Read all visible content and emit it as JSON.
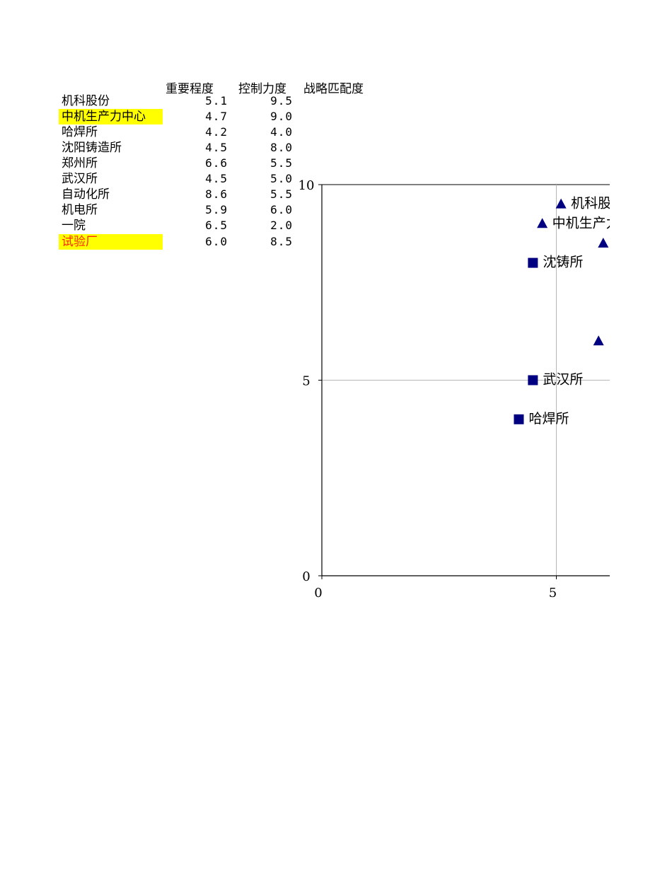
{
  "table": {
    "headers": [
      "重要程度",
      "控制力度",
      "战略匹配度"
    ],
    "rows": [
      {
        "name": "机科股份",
        "importance": "5.1",
        "control": "9.5"
      },
      {
        "name": "中机生产力中心",
        "importance": "4.7",
        "control": "9.0"
      },
      {
        "name": "哈焊所",
        "importance": "4.2",
        "control": "4.0"
      },
      {
        "name": "沈阳铸造所",
        "importance": "4.5",
        "control": "8.0"
      },
      {
        "name": "郑州所",
        "importance": "6.6",
        "control": "5.5"
      },
      {
        "name": "武汉所",
        "importance": "4.5",
        "control": "5.0"
      },
      {
        "name": "自动化所",
        "importance": "8.6",
        "control": "5.5"
      },
      {
        "name": "机电所",
        "importance": "5.9",
        "control": "6.0"
      },
      {
        "name": "一院",
        "importance": "6.5",
        "control": "2.0"
      },
      {
        "name": "试验厂",
        "importance": "6.0",
        "control": "8.5"
      }
    ]
  },
  "chart_data": {
    "type": "scatter",
    "title": "",
    "xlabel": "",
    "ylabel": "",
    "xlim": [
      0,
      10
    ],
    "ylim": [
      0,
      10
    ],
    "grid": true,
    "legend": "none",
    "x_ticks": [
      "0",
      "5"
    ],
    "y_ticks": [
      "0",
      "5",
      "10"
    ],
    "marker_color": "#000080",
    "points": [
      {
        "x": 5.1,
        "y": 9.5,
        "marker": "triangle",
        "label": "机科股份"
      },
      {
        "x": 4.7,
        "y": 9.0,
        "marker": "triangle",
        "label": "中机生产力中心"
      },
      {
        "x": 6.0,
        "y": 8.5,
        "marker": "triangle",
        "label": ""
      },
      {
        "x": 5.9,
        "y": 6.0,
        "marker": "triangle",
        "label": ""
      },
      {
        "x": 4.5,
        "y": 8.0,
        "marker": "square",
        "label": "沈铸所"
      },
      {
        "x": 4.5,
        "y": 5.0,
        "marker": "square",
        "label": "武汉所"
      },
      {
        "x": 4.2,
        "y": 4.0,
        "marker": "square",
        "label": "哈焊所"
      }
    ]
  }
}
